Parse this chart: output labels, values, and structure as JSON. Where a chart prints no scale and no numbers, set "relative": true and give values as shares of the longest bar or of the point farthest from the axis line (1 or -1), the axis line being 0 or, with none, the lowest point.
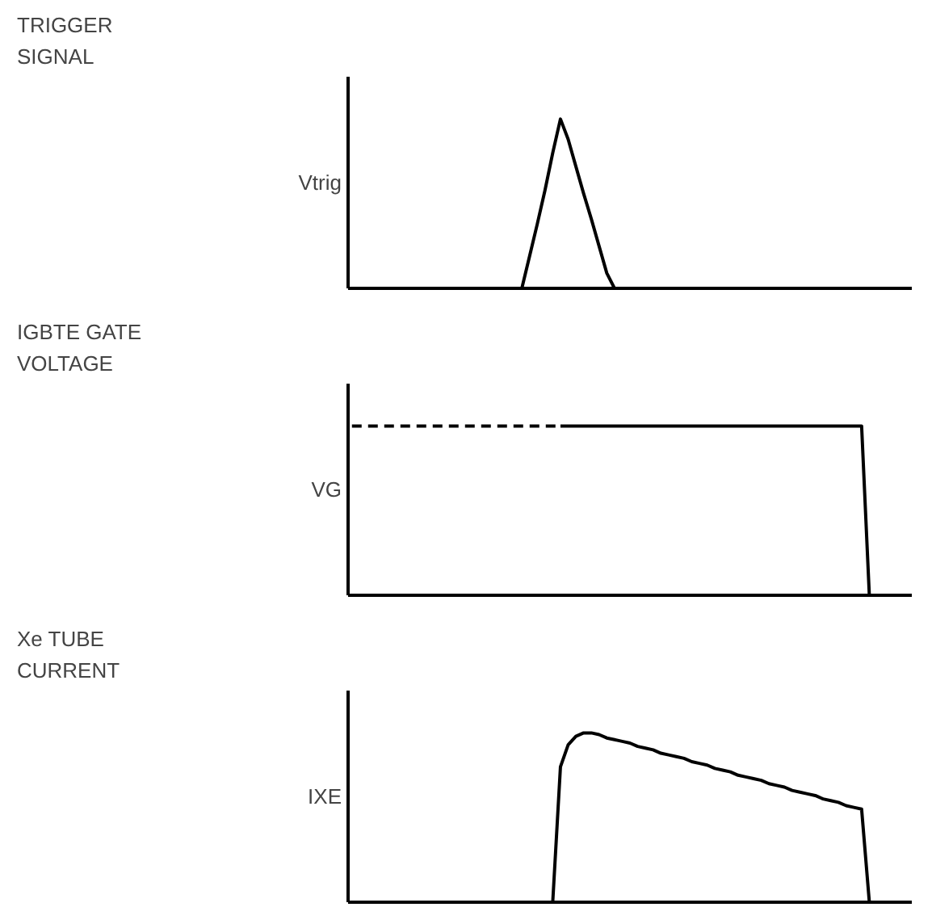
{
  "chart_data": [
    {
      "type": "line",
      "annotations": [
        "TRIGGER\nSIGNAL"
      ],
      "ylabel": "Vtrig",
      "relative": true,
      "categories": [
        null,
        null,
        null,
        null,
        null,
        null,
        null,
        null,
        null,
        null,
        null,
        null,
        null,
        null,
        null,
        null,
        null,
        null,
        null,
        null,
        null,
        null,
        null,
        null,
        null,
        null,
        null,
        null,
        null,
        null,
        null,
        null,
        null,
        null,
        null,
        null,
        null,
        null,
        null,
        null,
        null,
        null,
        null,
        null,
        null,
        null,
        null,
        null,
        null,
        null,
        null,
        null,
        null,
        null,
        null,
        null,
        null,
        null,
        null,
        null,
        null,
        null,
        null,
        null,
        null,
        null,
        null,
        null,
        null,
        null,
        null,
        null,
        null
      ],
      "series": [
        {
          "color": "#000000",
          "line_style": "solid",
          "values": [
            0,
            0,
            0,
            0,
            0,
            0,
            0,
            0,
            0,
            0,
            0,
            0,
            0,
            0,
            0,
            0,
            0,
            0,
            0,
            0,
            0,
            0,
            0,
            0.19,
            0.38,
            0.58,
            0.8,
            1,
            0.88,
            0.72,
            0.56,
            0.41,
            0.25,
            0.09,
            0,
            0,
            0,
            0,
            0,
            0,
            0,
            0,
            0,
            0,
            0,
            0,
            0,
            0,
            0,
            0,
            0,
            0,
            0,
            0,
            0,
            0,
            0,
            0,
            0,
            0,
            0,
            0,
            0,
            0,
            0,
            0,
            0,
            0,
            0,
            0,
            0,
            0,
            0
          ]
        }
      ]
    },
    {
      "type": "line",
      "annotations": [
        "IGBTE GATE\nVOLTAGE"
      ],
      "ylabel": "VG",
      "relative": true,
      "categories": [
        null,
        null,
        null,
        null,
        null,
        null,
        null,
        null,
        null,
        null,
        null,
        null,
        null,
        null,
        null,
        null,
        null,
        null,
        null,
        null,
        null,
        null,
        null,
        null,
        null,
        null,
        null,
        null,
        null,
        null,
        null,
        null,
        null,
        null,
        null,
        null,
        null,
        null,
        null,
        null,
        null,
        null,
        null,
        null,
        null,
        null,
        null,
        null,
        null,
        null,
        null,
        null,
        null,
        null,
        null,
        null,
        null,
        null,
        null,
        null,
        null,
        null,
        null,
        null,
        null,
        null,
        null,
        null,
        null,
        null,
        null,
        null,
        null
      ],
      "series": [
        {
          "color": "#000000",
          "line_style": "dashed",
          "values": [
            1,
            1,
            1,
            1,
            1,
            1,
            1,
            1,
            1,
            1,
            1,
            1,
            1,
            1,
            1,
            1,
            1,
            1,
            1,
            1,
            1,
            1,
            1,
            1,
            1,
            1,
            1,
            1,
            null,
            null,
            null,
            null,
            null,
            null,
            null,
            null,
            null,
            null,
            null,
            null,
            null,
            null,
            null,
            null,
            null,
            null,
            null,
            null,
            null,
            null,
            null,
            null,
            null,
            null,
            null,
            null,
            null,
            null,
            null,
            null,
            null,
            null,
            null,
            null,
            null,
            null,
            null,
            null,
            null,
            null,
            null,
            null,
            null
          ]
        },
        {
          "color": "#000000",
          "line_style": "solid",
          "values": [
            null,
            null,
            null,
            null,
            null,
            null,
            null,
            null,
            null,
            null,
            null,
            null,
            null,
            null,
            null,
            null,
            null,
            null,
            null,
            null,
            null,
            null,
            null,
            null,
            null,
            null,
            null,
            1,
            1,
            1,
            1,
            1,
            1,
            1,
            1,
            1,
            1,
            1,
            1,
            1,
            1,
            1,
            1,
            1,
            1,
            1,
            1,
            1,
            1,
            1,
            1,
            1,
            1,
            1,
            1,
            1,
            1,
            1,
            1,
            1,
            1,
            1,
            1,
            1,
            1,
            1,
            1,
            0,
            0,
            0,
            0,
            0,
            0
          ]
        }
      ]
    },
    {
      "type": "line",
      "annotations": [
        "Xe TUBE\nCURRENT"
      ],
      "ylabel": "IXE",
      "relative": true,
      "categories": [
        null,
        null,
        null,
        null,
        null,
        null,
        null,
        null,
        null,
        null,
        null,
        null,
        null,
        null,
        null,
        null,
        null,
        null,
        null,
        null,
        null,
        null,
        null,
        null,
        null,
        null,
        null,
        null,
        null,
        null,
        null,
        null,
        null,
        null,
        null,
        null,
        null,
        null,
        null,
        null,
        null,
        null,
        null,
        null,
        null,
        null,
        null,
        null,
        null,
        null,
        null,
        null,
        null,
        null,
        null,
        null,
        null,
        null,
        null,
        null,
        null,
        null,
        null,
        null,
        null,
        null,
        null,
        null,
        null,
        null,
        null,
        null,
        null
      ],
      "series": [
        {
          "color": "#000000",
          "line_style": "solid",
          "values": [
            0,
            0,
            0,
            0,
            0,
            0,
            0,
            0,
            0,
            0,
            0,
            0,
            0,
            0,
            0,
            0,
            0,
            0,
            0,
            0,
            0,
            0,
            0,
            0,
            0,
            0,
            0,
            0.8,
            0.93,
            0.98,
            1,
            1,
            0.99,
            0.97,
            0.96,
            0.95,
            0.94,
            0.92,
            0.91,
            0.9,
            0.88,
            0.87,
            0.86,
            0.85,
            0.83,
            0.82,
            0.81,
            0.79,
            0.78,
            0.77,
            0.75,
            0.74,
            0.73,
            0.72,
            0.7,
            0.69,
            0.68,
            0.66,
            0.65,
            0.64,
            0.63,
            0.61,
            0.6,
            0.59,
            0.57,
            0.56,
            0.55,
            0,
            0,
            0,
            0,
            0,
            0
          ]
        }
      ]
    }
  ]
}
